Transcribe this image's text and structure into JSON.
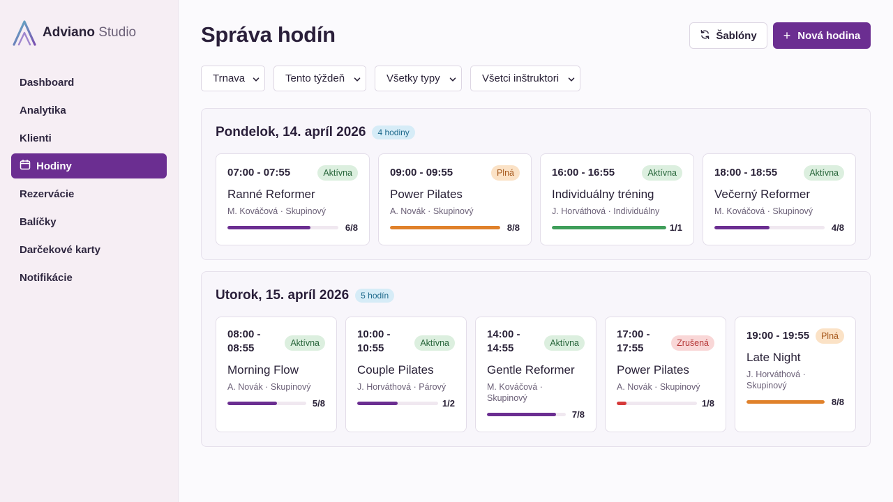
{
  "brand": {
    "name_bold": "Adviano",
    "name_light": "Studio",
    "logo_icon": "mountain-logo-icon"
  },
  "nav": [
    {
      "label": "Dashboard",
      "active": false
    },
    {
      "label": "Analytika",
      "active": false
    },
    {
      "label": "Klienti",
      "active": false
    },
    {
      "label": "Hodiny",
      "active": true,
      "icon": "calendar-icon"
    },
    {
      "label": "Rezervácie",
      "active": false
    },
    {
      "label": "Balíčky",
      "active": false
    },
    {
      "label": "Darčekové karty",
      "active": false
    },
    {
      "label": "Notifikácie",
      "active": false
    }
  ],
  "header": {
    "title": "Správa hodín",
    "templates_label": "Šablóny",
    "templates_icon": "refresh-icon",
    "new_label": "Nová hodina",
    "new_icon": "plus-icon"
  },
  "filters": [
    {
      "value": "Trnava"
    },
    {
      "value": "Tento týždeň"
    },
    {
      "value": "Všetky typy"
    },
    {
      "value": "Všetci inštruktori"
    }
  ],
  "colors": {
    "accent": "#6b2e91",
    "full": "#e0812a",
    "complete": "#3f9e5a",
    "cancelled": "#d63a3a"
  },
  "days": [
    {
      "title": "Pondelok, 14. apríl 2026",
      "count_label": "4 hodiny",
      "classes": [
        {
          "time": "07:00 - 07:55",
          "status": "Aktívna",
          "status_key": "aktivna",
          "name": "Ranné Reformer",
          "meta": "M. Kováčová · Skupinový",
          "capacity": "6/8",
          "fill": 0.75,
          "bar_color": "#6b2e91"
        },
        {
          "time": "09:00 - 09:55",
          "status": "Plná",
          "status_key": "plna",
          "name": "Power Pilates",
          "meta": "A. Novák · Skupinový",
          "capacity": "8/8",
          "fill": 1.0,
          "bar_color": "#e0812a"
        },
        {
          "time": "16:00 - 16:55",
          "status": "Aktívna",
          "status_key": "aktivna",
          "name": "Individuálny tréning",
          "meta": "J. Horváthová · Individuálny",
          "capacity": "1/1",
          "fill": 1.0,
          "bar_color": "#3f9e5a"
        },
        {
          "time": "18:00 - 18:55",
          "status": "Aktívna",
          "status_key": "aktivna",
          "name": "Večerný Reformer",
          "meta": "M. Kováčová · Skupinový",
          "capacity": "4/8",
          "fill": 0.5,
          "bar_color": "#6b2e91"
        }
      ]
    },
    {
      "title": "Utorok, 15. apríl 2026",
      "count_label": "5 hodín",
      "classes": [
        {
          "time_lines": [
            "08:00 -",
            "08:55"
          ],
          "status": "Aktívna",
          "status_key": "aktivna",
          "name": "Morning Flow",
          "meta_lines": [
            "A. Novák · Skupinový"
          ],
          "capacity": "5/8",
          "fill": 0.625,
          "bar_color": "#6b2e91"
        },
        {
          "time_lines": [
            "10:00 -",
            "10:55"
          ],
          "status": "Aktívna",
          "status_key": "aktivna",
          "name": "Couple Pilates",
          "meta_lines": [
            "J. Horváthová · Párový"
          ],
          "capacity": "1/2",
          "fill": 0.5,
          "bar_color": "#6b2e91"
        },
        {
          "time_lines": [
            "14:00 -",
            "14:55"
          ],
          "status": "Aktívna",
          "status_key": "aktivna",
          "name": "Gentle Reformer",
          "meta_lines": [
            "M. Kováčová ·",
            "Skupinový"
          ],
          "capacity": "7/8",
          "fill": 0.875,
          "bar_color": "#6b2e91"
        },
        {
          "time_lines": [
            "17:00 -",
            "17:55"
          ],
          "status": "Zrušená",
          "status_key": "zrusena",
          "name": "Power Pilates",
          "meta_lines": [
            "A. Novák · Skupinový"
          ],
          "capacity": "1/8",
          "fill": 0.125,
          "bar_color": "#d63a3a"
        },
        {
          "time_lines": [
            "19:00 - 19:55"
          ],
          "status": "Plná",
          "status_key": "plna",
          "name": "Late Night",
          "meta_lines": [
            "J. Horváthová ·",
            "Skupinový"
          ],
          "capacity": "8/8",
          "fill": 1.0,
          "bar_color": "#e0812a"
        }
      ]
    }
  ]
}
